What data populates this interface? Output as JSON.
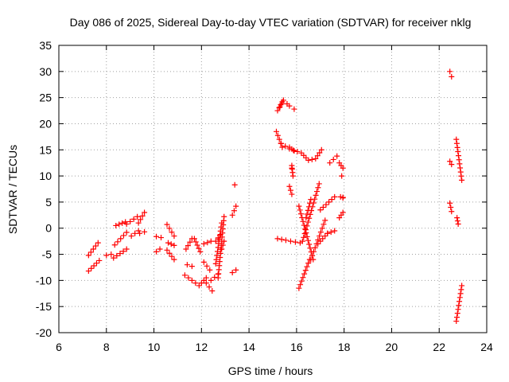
{
  "chart_data": {
    "type": "scatter",
    "title": "Day 086 of 2025, Sidereal Day-to-day VTEC variation (SDTVAR) for receiver nklg",
    "xlabel": "GPS time / hours",
    "ylabel": "SDTVAR / TECUs",
    "xlim": [
      6,
      24
    ],
    "ylim": [
      -20,
      35
    ],
    "xticks": [
      "6",
      "8",
      "10",
      "12",
      "14",
      "16",
      "18",
      "20",
      "22",
      "24"
    ],
    "yticks": [
      "-20",
      "-15",
      "-10",
      "-5",
      "0",
      "5",
      "10",
      "15",
      "20",
      "25",
      "30",
      "35"
    ],
    "grid": true,
    "marker": "plus",
    "color": "#ff0000",
    "segments": [
      {
        "x0": 7.25,
        "y0": -8.2,
        "x1": 7.7,
        "y1": -6.2
      },
      {
        "x0": 7.25,
        "y0": -5.2,
        "x1": 7.65,
        "y1": -2.8
      },
      {
        "x0": 8.0,
        "y0": -5.2,
        "x1": 8.2,
        "y1": -5.0
      },
      {
        "x0": 8.3,
        "y0": -5.7,
        "x1": 8.85,
        "y1": -4.0
      },
      {
        "x0": 8.35,
        "y0": -3.2,
        "x1": 8.85,
        "y1": -0.8
      },
      {
        "x0": 8.4,
        "y0": 0.5,
        "x1": 8.8,
        "y1": 1.2
      },
      {
        "x0": 8.85,
        "y0": 0.8,
        "x1": 9.3,
        "y1": 2.2
      },
      {
        "x0": 9.05,
        "y0": -1.5,
        "x1": 9.35,
        "y1": -0.5
      },
      {
        "x0": 9.35,
        "y0": 1.0,
        "x1": 9.6,
        "y1": 3.0
      },
      {
        "x0": 9.4,
        "y0": -1.0,
        "x1": 9.6,
        "y1": -0.7
      },
      {
        "x0": 10.1,
        "y0": -4.5,
        "x1": 10.25,
        "y1": -4.0
      },
      {
        "x0": 10.1,
        "y0": -1.6,
        "x1": 10.3,
        "y1": -1.8
      },
      {
        "x0": 10.55,
        "y0": 0.7,
        "x1": 10.85,
        "y1": -1.5
      },
      {
        "x0": 10.55,
        "y0": -4.2,
        "x1": 10.85,
        "y1": -6.0
      },
      {
        "x0": 10.6,
        "y0": -2.8,
        "x1": 10.85,
        "y1": -3.3
      },
      {
        "x0": 11.3,
        "y0": -9.0,
        "x1": 11.75,
        "y1": -10.5
      },
      {
        "x0": 11.35,
        "y0": -4.0,
        "x1": 11.6,
        "y1": -2.0
      },
      {
        "x0": 11.4,
        "y0": -7.0,
        "x1": 11.6,
        "y1": -7.3
      },
      {
        "x0": 11.7,
        "y0": -2.0,
        "x1": 11.95,
        "y1": -4.5
      },
      {
        "x0": 11.9,
        "y0": -11.0,
        "x1": 12.2,
        "y1": -9.5
      },
      {
        "x0": 12.1,
        "y0": -6.5,
        "x1": 12.35,
        "y1": -8.0
      },
      {
        "x0": 12.1,
        "y0": -3.0,
        "x1": 12.4,
        "y1": -2.5
      },
      {
        "x0": 12.2,
        "y0": -10.5,
        "x1": 12.45,
        "y1": -12.0
      },
      {
        "x0": 12.4,
        "y0": -10.0,
        "x1": 12.7,
        "y1": -8.8
      },
      {
        "x0": 12.6,
        "y0": -6.8,
        "x1": 12.85,
        "y1": 1.0
      },
      {
        "x0": 12.6,
        "y0": -2.5,
        "x1": 12.8,
        "y1": -1.2
      },
      {
        "x0": 12.7,
        "y0": -9.5,
        "x1": 12.95,
        "y1": 2.2
      },
      {
        "x0": 12.85,
        "y0": -4.0,
        "x1": 12.95,
        "y1": -2.5
      },
      {
        "x0": 13.3,
        "y0": 2.5,
        "x1": 13.45,
        "y1": 4.2
      },
      {
        "x0": 13.3,
        "y0": -8.5,
        "x1": 13.45,
        "y1": -8.0
      },
      {
        "x0": 15.15,
        "y0": 18.5,
        "x1": 15.4,
        "y1": 15.5
      },
      {
        "x0": 15.2,
        "y0": 22.5,
        "x1": 15.4,
        "y1": 24.2
      },
      {
        "x0": 15.2,
        "y0": -2.0,
        "x1": 15.55,
        "y1": -2.3
      },
      {
        "x0": 15.7,
        "y0": 15.5,
        "x1": 15.9,
        "y1": 14.8
      },
      {
        "x0": 15.7,
        "y0": 8.0,
        "x1": 15.8,
        "y1": 6.5
      },
      {
        "x0": 15.75,
        "y0": -2.5,
        "x1": 16.15,
        "y1": -2.8
      },
      {
        "x0": 15.8,
        "y0": 12.0,
        "x1": 15.85,
        "y1": 10.0
      },
      {
        "x0": 16.1,
        "y0": 4.2,
        "x1": 16.7,
        "y1": -6.0
      },
      {
        "x0": 16.1,
        "y0": -11.5,
        "x1": 16.55,
        "y1": -6.0
      },
      {
        "x0": 16.25,
        "y0": -2.5,
        "x1": 16.95,
        "y1": 8.5
      },
      {
        "x0": 16.4,
        "y0": 2.0,
        "x1": 16.6,
        "y1": 5.5
      },
      {
        "x0": 16.6,
        "y0": -6.0,
        "x1": 17.2,
        "y1": 1.5
      },
      {
        "x0": 16.9,
        "y0": -3.0,
        "x1": 17.3,
        "y1": -1.0
      },
      {
        "x0": 17.0,
        "y0": 3.5,
        "x1": 17.6,
        "y1": 6.0
      },
      {
        "x0": 17.3,
        "y0": -1.0,
        "x1": 17.6,
        "y1": -0.5
      },
      {
        "x0": 17.4,
        "y0": 12.5,
        "x1": 17.7,
        "y1": 13.8
      },
      {
        "x0": 17.8,
        "y0": 2.0,
        "x1": 17.95,
        "y1": 3.0
      },
      {
        "x0": 17.8,
        "y0": 12.5,
        "x1": 17.95,
        "y1": 11.5
      },
      {
        "x0": 17.85,
        "y0": 6.0,
        "x1": 17.95,
        "y1": 5.8
      },
      {
        "x0": 22.45,
        "y0": 30.0,
        "x1": 22.52,
        "y1": 29.0
      },
      {
        "x0": 22.45,
        "y0": 12.8,
        "x1": 22.52,
        "y1": 12.2
      },
      {
        "x0": 22.45,
        "y0": 4.8,
        "x1": 22.52,
        "y1": 3.2
      },
      {
        "x0": 22.72,
        "y0": 17.0,
        "x1": 22.95,
        "y1": 9.2
      },
      {
        "x0": 22.75,
        "y0": 2.0,
        "x1": 22.8,
        "y1": 0.8
      },
      {
        "x0": 22.72,
        "y0": -17.8,
        "x1": 22.95,
        "y1": -11.0
      }
    ],
    "curves": [
      {
        "points": [
          [
            15.3,
            23.2
          ],
          [
            15.45,
            24.5
          ],
          [
            15.6,
            23.8
          ],
          [
            15.7,
            23.4
          ],
          [
            15.9,
            22.8
          ]
        ]
      },
      {
        "points": [
          [
            15.35,
            16.2
          ],
          [
            15.7,
            15.2
          ],
          [
            16.2,
            14.4
          ],
          [
            16.5,
            13.0
          ],
          [
            16.8,
            13.3
          ],
          [
            17.05,
            15.0
          ]
        ]
      }
    ],
    "points": [
      {
        "x": 13.4,
        "y": 8.3
      },
      {
        "x": 15.8,
        "y": 11.5
      },
      {
        "x": 17.9,
        "y": 10.0
      },
      {
        "x": 17.95,
        "y": 5.9
      }
    ]
  }
}
